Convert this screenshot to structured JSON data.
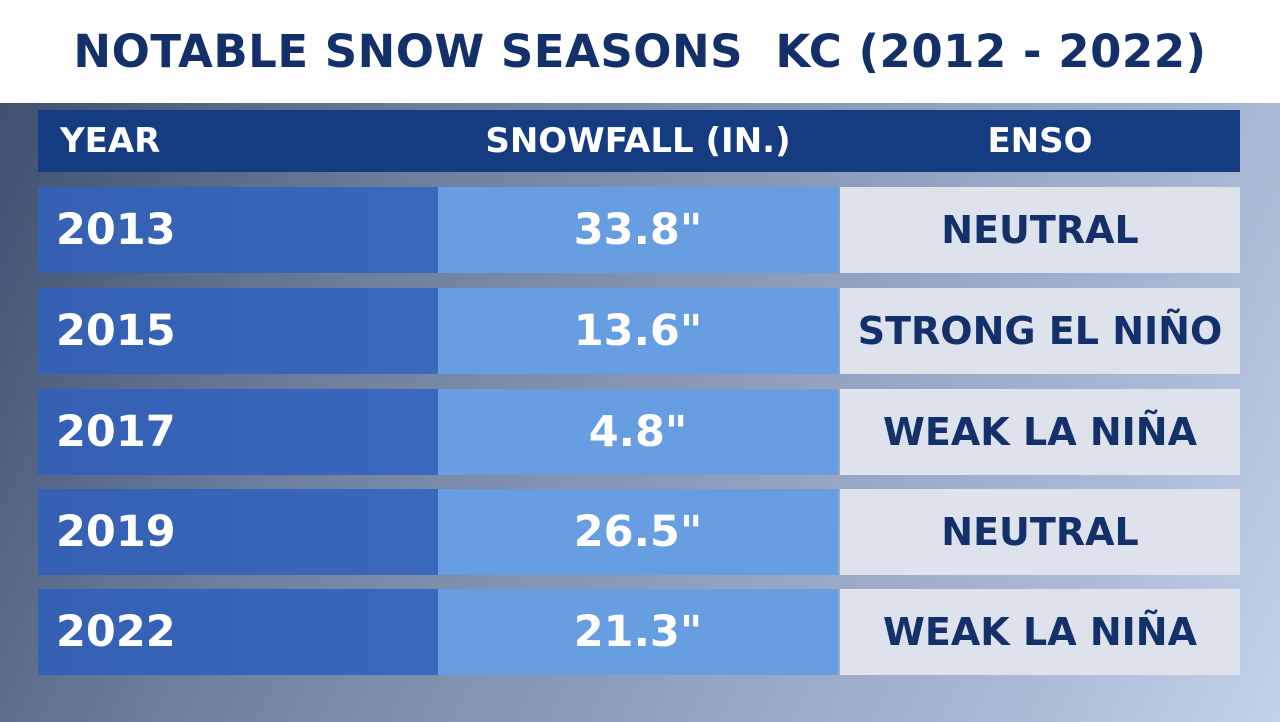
{
  "title": "NOTABLE SNOW SEASONS  KC (2012 - 2022)",
  "headers": {
    "year": "YEAR",
    "snowfall": "SNOWFALL (IN.)",
    "enso": "ENSO"
  },
  "rows": [
    {
      "year": "2013",
      "snowfall": "33.8\"",
      "enso": "NEUTRAL"
    },
    {
      "year": "2015",
      "snowfall": "13.6\"",
      "enso": "STRONG EL NIÑO"
    },
    {
      "year": "2017",
      "snowfall": "4.8\"",
      "enso": "WEAK LA NIÑA"
    },
    {
      "year": "2019",
      "snowfall": "26.5\"",
      "enso": "NEUTRAL"
    },
    {
      "year": "2022",
      "snowfall": "21.3\"",
      "enso": "WEAK LA NIÑA"
    }
  ],
  "colors": {
    "navy": "#13306b",
    "header_bg": "#153b80",
    "year_bg": "#3a68bd",
    "snow_bg": "#679ee2",
    "enso_bg": "#dde2ec"
  }
}
